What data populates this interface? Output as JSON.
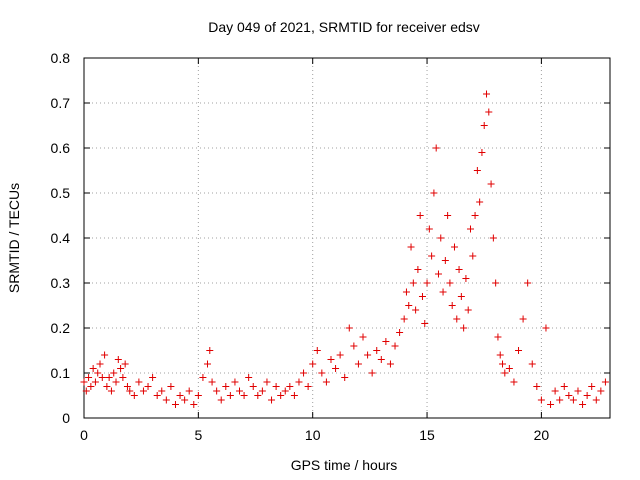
{
  "chart_data": {
    "type": "scatter",
    "title": "Day 049 of 2021, SRMTID for receiver edsv",
    "xlabel": "GPS time / hours",
    "ylabel": "SRMTID / TECUs",
    "xlim": [
      0,
      23
    ],
    "ylim": [
      0,
      0.8
    ],
    "xticks": [
      0,
      5,
      10,
      15,
      20
    ],
    "xtick_labels": [
      "0",
      "5",
      "10",
      "15",
      "20"
    ],
    "yticks": [
      0,
      0.1,
      0.2,
      0.3,
      0.4,
      0.5,
      0.6,
      0.7,
      0.8
    ],
    "ytick_labels": [
      "0",
      "0.1",
      "0.2",
      "0.3",
      "0.4",
      "0.5",
      "0.6",
      "0.7",
      "0.8"
    ],
    "grid": true,
    "marker": "+",
    "marker_color": "#e00000",
    "series": [
      {
        "name": "SRMTID",
        "points": [
          [
            0.0,
            0.08
          ],
          [
            0.1,
            0.06
          ],
          [
            0.2,
            0.09
          ],
          [
            0.3,
            0.07
          ],
          [
            0.4,
            0.11
          ],
          [
            0.5,
            0.08
          ],
          [
            0.6,
            0.1
          ],
          [
            0.7,
            0.12
          ],
          [
            0.8,
            0.09
          ],
          [
            0.9,
            0.14
          ],
          [
            1.0,
            0.07
          ],
          [
            1.1,
            0.09
          ],
          [
            1.2,
            0.06
          ],
          [
            1.3,
            0.1
          ],
          [
            1.4,
            0.08
          ],
          [
            1.5,
            0.13
          ],
          [
            1.6,
            0.11
          ],
          [
            1.7,
            0.09
          ],
          [
            1.8,
            0.12
          ],
          [
            1.9,
            0.07
          ],
          [
            2.0,
            0.06
          ],
          [
            2.2,
            0.05
          ],
          [
            2.4,
            0.08
          ],
          [
            2.6,
            0.06
          ],
          [
            2.8,
            0.07
          ],
          [
            3.0,
            0.09
          ],
          [
            3.2,
            0.05
          ],
          [
            3.4,
            0.06
          ],
          [
            3.6,
            0.04
          ],
          [
            3.8,
            0.07
          ],
          [
            4.0,
            0.03
          ],
          [
            4.2,
            0.05
          ],
          [
            4.4,
            0.04
          ],
          [
            4.6,
            0.06
          ],
          [
            4.8,
            0.03
          ],
          [
            5.0,
            0.05
          ],
          [
            5.2,
            0.09
          ],
          [
            5.4,
            0.12
          ],
          [
            5.5,
            0.15
          ],
          [
            5.6,
            0.08
          ],
          [
            5.8,
            0.06
          ],
          [
            6.0,
            0.04
          ],
          [
            6.2,
            0.07
          ],
          [
            6.4,
            0.05
          ],
          [
            6.6,
            0.08
          ],
          [
            6.8,
            0.06
          ],
          [
            7.0,
            0.05
          ],
          [
            7.2,
            0.09
          ],
          [
            7.4,
            0.07
          ],
          [
            7.6,
            0.05
          ],
          [
            7.8,
            0.06
          ],
          [
            8.0,
            0.08
          ],
          [
            8.2,
            0.04
          ],
          [
            8.4,
            0.07
          ],
          [
            8.6,
            0.05
          ],
          [
            8.8,
            0.06
          ],
          [
            9.0,
            0.07
          ],
          [
            9.2,
            0.05
          ],
          [
            9.4,
            0.08
          ],
          [
            9.6,
            0.1
          ],
          [
            9.8,
            0.07
          ],
          [
            10.0,
            0.12
          ],
          [
            10.2,
            0.15
          ],
          [
            10.4,
            0.1
          ],
          [
            10.6,
            0.08
          ],
          [
            10.8,
            0.13
          ],
          [
            11.0,
            0.11
          ],
          [
            11.2,
            0.14
          ],
          [
            11.4,
            0.09
          ],
          [
            11.6,
            0.2
          ],
          [
            11.8,
            0.16
          ],
          [
            12.0,
            0.12
          ],
          [
            12.2,
            0.18
          ],
          [
            12.4,
            0.14
          ],
          [
            12.6,
            0.1
          ],
          [
            12.8,
            0.15
          ],
          [
            13.0,
            0.13
          ],
          [
            13.2,
            0.17
          ],
          [
            13.4,
            0.12
          ],
          [
            13.6,
            0.16
          ],
          [
            13.8,
            0.19
          ],
          [
            14.0,
            0.22
          ],
          [
            14.1,
            0.28
          ],
          [
            14.2,
            0.25
          ],
          [
            14.3,
            0.38
          ],
          [
            14.4,
            0.3
          ],
          [
            14.5,
            0.24
          ],
          [
            14.6,
            0.33
          ],
          [
            14.7,
            0.45
          ],
          [
            14.8,
            0.27
          ],
          [
            14.9,
            0.21
          ],
          [
            15.0,
            0.3
          ],
          [
            15.1,
            0.42
          ],
          [
            15.2,
            0.36
          ],
          [
            15.3,
            0.5
          ],
          [
            15.4,
            0.6
          ],
          [
            15.5,
            0.32
          ],
          [
            15.6,
            0.4
          ],
          [
            15.7,
            0.28
          ],
          [
            15.8,
            0.35
          ],
          [
            15.9,
            0.45
          ],
          [
            16.0,
            0.3
          ],
          [
            16.1,
            0.25
          ],
          [
            16.2,
            0.38
          ],
          [
            16.3,
            0.22
          ],
          [
            16.4,
            0.33
          ],
          [
            16.5,
            0.27
          ],
          [
            16.6,
            0.2
          ],
          [
            16.7,
            0.31
          ],
          [
            16.8,
            0.24
          ],
          [
            16.9,
            0.42
          ],
          [
            17.0,
            0.36
          ],
          [
            17.1,
            0.45
          ],
          [
            17.2,
            0.55
          ],
          [
            17.3,
            0.48
          ],
          [
            17.4,
            0.59
          ],
          [
            17.5,
            0.65
          ],
          [
            17.6,
            0.72
          ],
          [
            17.7,
            0.68
          ],
          [
            17.8,
            0.52
          ],
          [
            17.9,
            0.4
          ],
          [
            18.0,
            0.3
          ],
          [
            18.1,
            0.18
          ],
          [
            18.2,
            0.14
          ],
          [
            18.3,
            0.12
          ],
          [
            18.4,
            0.1
          ],
          [
            18.6,
            0.11
          ],
          [
            18.8,
            0.08
          ],
          [
            19.0,
            0.15
          ],
          [
            19.2,
            0.22
          ],
          [
            19.4,
            0.3
          ],
          [
            19.6,
            0.12
          ],
          [
            19.8,
            0.07
          ],
          [
            20.0,
            0.04
          ],
          [
            20.2,
            0.2
          ],
          [
            20.4,
            0.03
          ],
          [
            20.6,
            0.06
          ],
          [
            20.8,
            0.04
          ],
          [
            21.0,
            0.07
          ],
          [
            21.2,
            0.05
          ],
          [
            21.4,
            0.04
          ],
          [
            21.6,
            0.06
          ],
          [
            21.8,
            0.03
          ],
          [
            22.0,
            0.05
          ],
          [
            22.2,
            0.07
          ],
          [
            22.4,
            0.04
          ],
          [
            22.6,
            0.06
          ],
          [
            22.8,
            0.08
          ]
        ]
      }
    ]
  }
}
